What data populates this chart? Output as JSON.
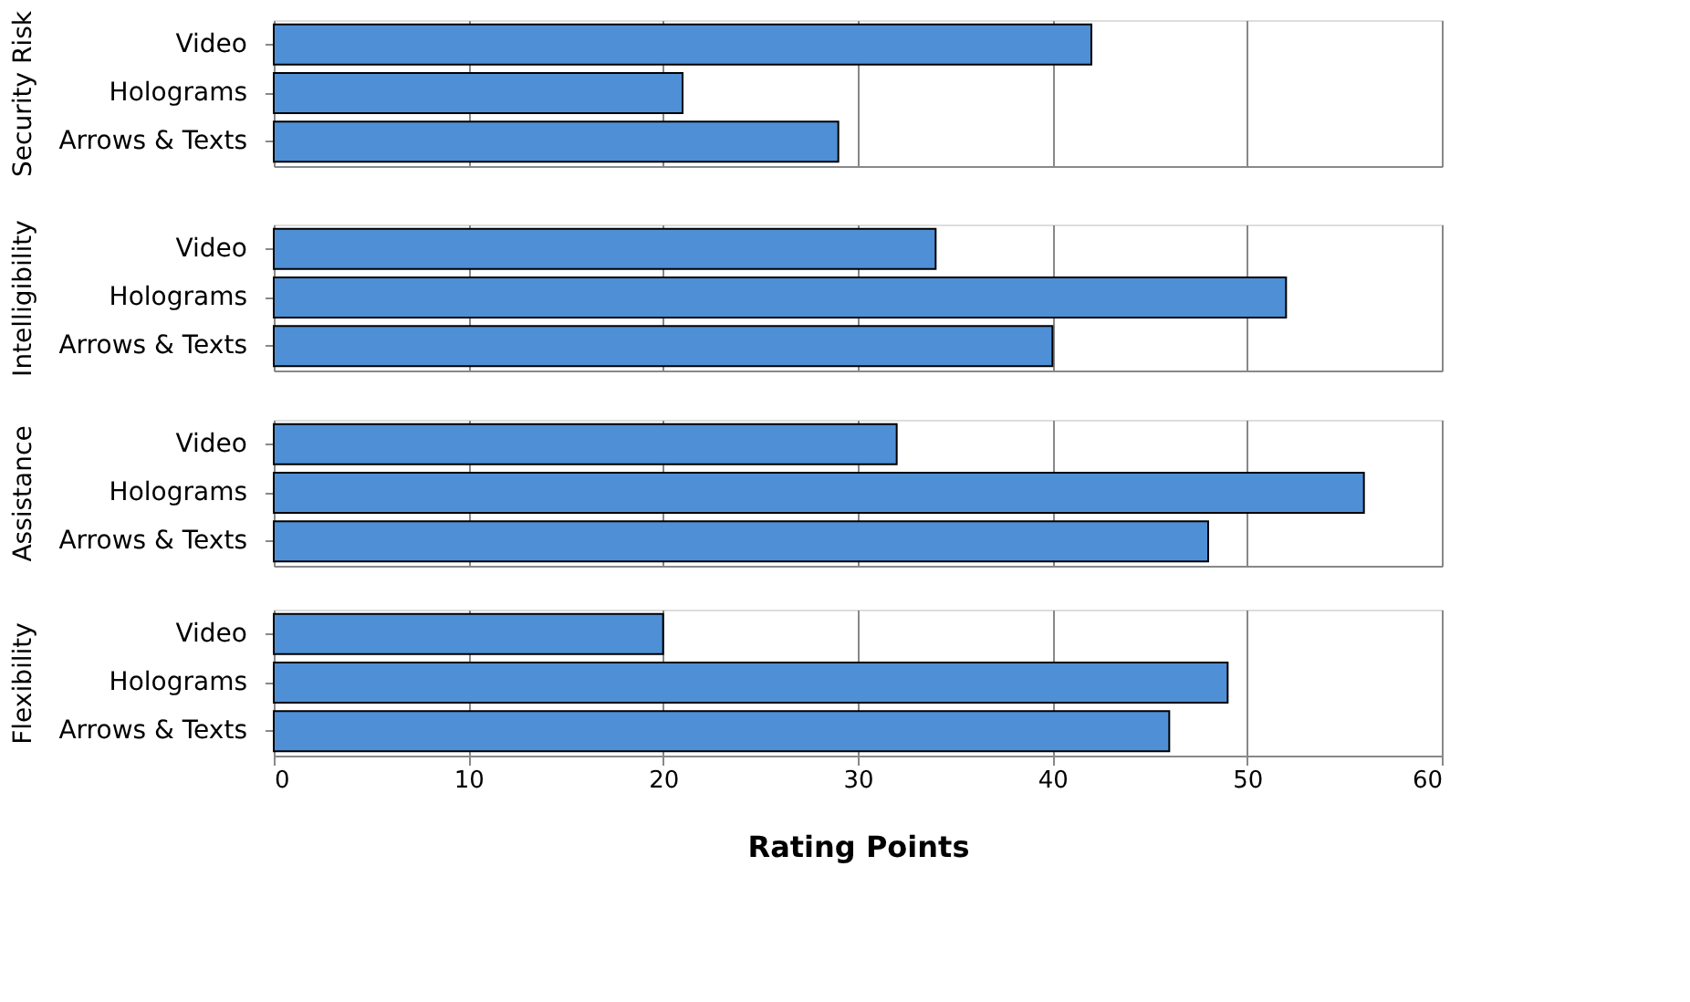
{
  "chart_data": [
    {
      "type": "bar",
      "orientation": "horizontal",
      "ylabel": "Security Risk",
      "categories": [
        "Video",
        "Holograms",
        "Arrows & Texts"
      ],
      "values": [
        42,
        21,
        29
      ],
      "color": "#4f8fd6",
      "xlim": [
        0,
        60
      ],
      "xticks": [
        0,
        10,
        20,
        30,
        40,
        50,
        60
      ],
      "grid": "x",
      "tick_labels": "y"
    },
    {
      "type": "bar",
      "orientation": "horizontal",
      "ylabel": "Intelligibility",
      "categories": [
        "Video",
        "Holograms",
        "Arrows & Texts"
      ],
      "values": [
        34,
        52,
        40
      ],
      "color": "#4f8fd6",
      "xlim": [
        0,
        60
      ],
      "xticks": [
        0,
        10,
        20,
        30,
        40,
        50,
        60
      ],
      "grid": "x",
      "tick_labels": "y"
    },
    {
      "type": "bar",
      "orientation": "horizontal",
      "ylabel": "Assistance",
      "categories": [
        "Video",
        "Holograms",
        "Arrows & Texts"
      ],
      "values": [
        32,
        56,
        48
      ],
      "color": "#4f8fd6",
      "xlim": [
        0,
        60
      ],
      "xticks": [
        0,
        10,
        20,
        30,
        40,
        50,
        60
      ],
      "grid": "x",
      "tick_labels": "y"
    },
    {
      "type": "bar",
      "orientation": "horizontal",
      "ylabel": "Flexibility",
      "xlabel": "Rating Points",
      "categories": [
        "Video",
        "Holograms",
        "Arrows & Texts"
      ],
      "values": [
        20,
        49,
        46
      ],
      "color": "#4f8fd6",
      "xlim": [
        0,
        60
      ],
      "xticks": [
        0,
        10,
        20,
        30,
        40,
        50,
        60
      ],
      "grid": "x"
    }
  ]
}
